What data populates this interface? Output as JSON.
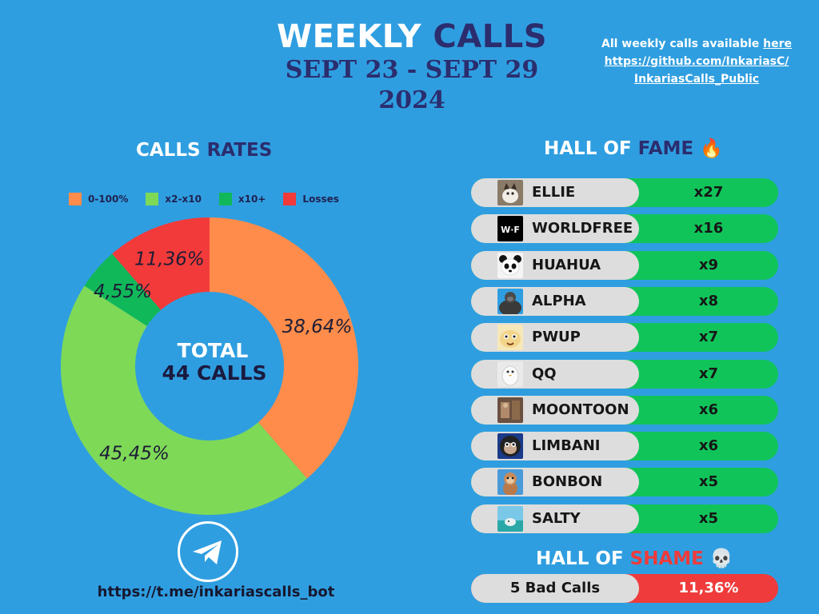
{
  "header": {
    "title_part1": "WEEKLY",
    "title_part2": "CALLS",
    "date_range": "SEPT 23 - SEPT 29",
    "year": "2024"
  },
  "archive": {
    "text": "All weekly calls available ",
    "here": "here",
    "url_line1": "https://github.com/InkariasC/",
    "url_line2": "InkariasCalls_Public"
  },
  "rates_heading": {
    "part1": "CALLS",
    "part2": "RATES"
  },
  "fame_heading": {
    "part1": "HALL OF",
    "part2": "FAME",
    "emoji": "🔥"
  },
  "shame_heading": {
    "part1": "HALL OF",
    "part2": "SHAME",
    "emoji": "💀"
  },
  "chart_data": {
    "type": "pie",
    "categories": [
      "0-100%",
      "x2-x10",
      "x10+",
      "Losses"
    ],
    "values": [
      38.64,
      45.45,
      4.55,
      11.36
    ],
    "labels": [
      "38,64%",
      "45,45%",
      "4,55%",
      "11,36%"
    ],
    "colors": [
      "#ff8c4a",
      "#7ed957",
      "#10b85a",
      "#f23a3a"
    ],
    "center_line1": "TOTAL",
    "center_line2": "44 CALLS",
    "legend_position": "top"
  },
  "hall_of_fame": [
    {
      "name": "ELLIE",
      "mult": "x27",
      "avatar": "cat-avatar"
    },
    {
      "name": "WORLDFREE",
      "mult": "x16",
      "avatar": "wf-logo-avatar"
    },
    {
      "name": "HUAHUA",
      "mult": "x9",
      "avatar": "panda-avatar"
    },
    {
      "name": "ALPHA",
      "mult": "x8",
      "avatar": "gorilla-avatar"
    },
    {
      "name": "PWUP",
      "mult": "x7",
      "avatar": "dog-avatar"
    },
    {
      "name": "QQ",
      "mult": "x7",
      "avatar": "penguin-avatar"
    },
    {
      "name": "MOONTOON",
      "mult": "x6",
      "avatar": "photo-avatar"
    },
    {
      "name": "LIMBANI",
      "mult": "x6",
      "avatar": "chimp-avatar"
    },
    {
      "name": "BONBON",
      "mult": "x5",
      "avatar": "monkey-avatar"
    },
    {
      "name": "SALTY",
      "mult": "x5",
      "avatar": "sea-avatar"
    }
  ],
  "hall_of_shame": {
    "label": "5 Bad Calls",
    "value": "11,36%"
  },
  "telegram": {
    "link": "https://t.me/inkariascalls_bot"
  }
}
